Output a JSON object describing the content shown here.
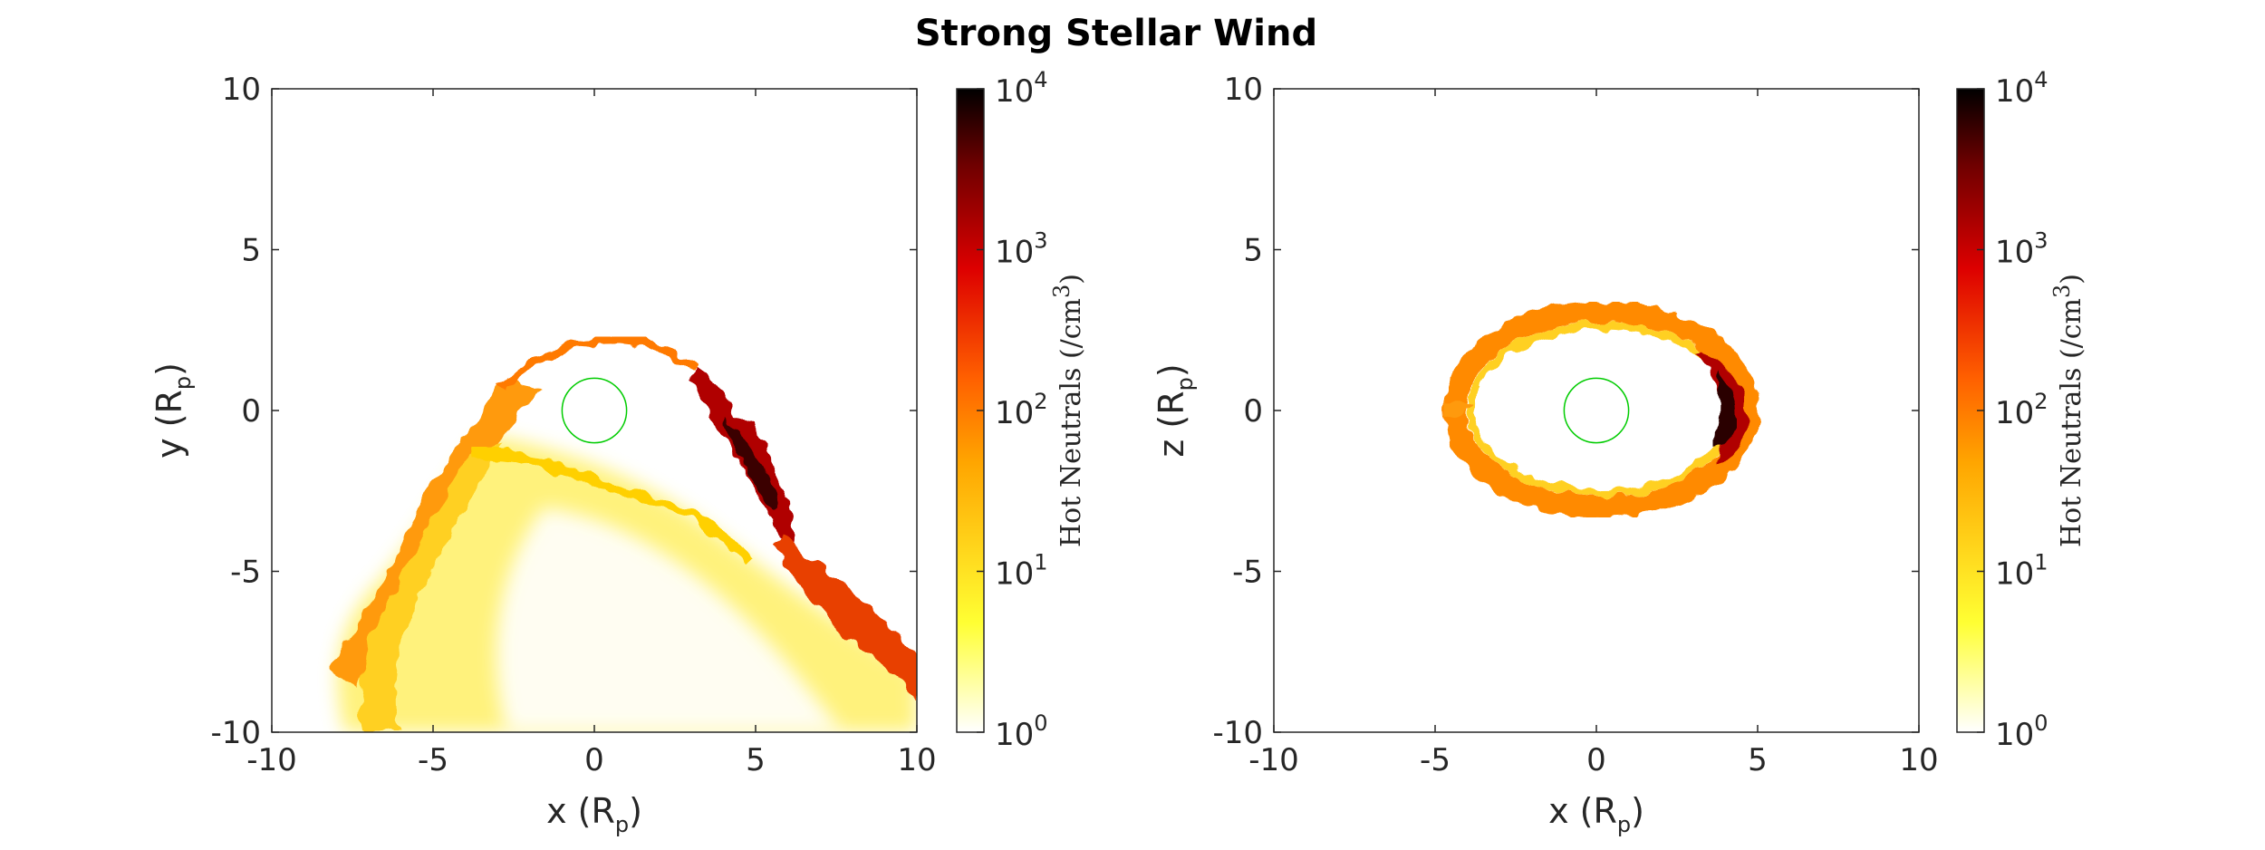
{
  "title": "Strong Stellar Wind",
  "colors": {
    "planet": "#00cc00",
    "colormap": [
      "#ffffff",
      "#ffff33",
      "#ffa500",
      "#ff6000",
      "#dd0000",
      "#700000",
      "#000000"
    ]
  },
  "chart_data": [
    {
      "type": "heatmap",
      "title": "",
      "xlabel": "x (R",
      "xlabel_sub": "p",
      "xlabel_close": ")",
      "ylabel": "y (R",
      "ylabel_sub": "p",
      "ylabel_close": ")",
      "xlim": [
        -10,
        10
      ],
      "ylim": [
        -10,
        10
      ],
      "xticks": [
        "-10",
        "-5",
        "0",
        "5",
        "10"
      ],
      "yticks": [
        "-10",
        "-5",
        "0",
        "5",
        "10"
      ],
      "grid": false,
      "planet_radius": 1,
      "colorbar": {
        "label": "Hot Neutrals (/cm",
        "label_sup": "3",
        "label_close": ")",
        "scale": "log",
        "range": [
          1,
          10000
        ],
        "tick_base": "10",
        "tick_exponents": [
          "0",
          "1",
          "2",
          "3",
          "4"
        ]
      }
    },
    {
      "type": "heatmap",
      "title": "",
      "xlabel": "x (R",
      "xlabel_sub": "p",
      "xlabel_close": ")",
      "ylabel": "z (R",
      "ylabel_sub": "p",
      "ylabel_close": ")",
      "xlim": [
        -10,
        10
      ],
      "ylim": [
        -10,
        10
      ],
      "xticks": [
        "-10",
        "-5",
        "0",
        "5",
        "10"
      ],
      "yticks": [
        "-10",
        "-5",
        "0",
        "5",
        "10"
      ],
      "grid": false,
      "planet_radius": 1,
      "colorbar": {
        "label": "Hot Neutrals (/cm",
        "label_sup": "3",
        "label_close": ")",
        "scale": "log",
        "range": [
          1,
          10000
        ],
        "tick_base": "10",
        "tick_exponents": [
          "0",
          "1",
          "2",
          "3",
          "4"
        ]
      }
    }
  ]
}
